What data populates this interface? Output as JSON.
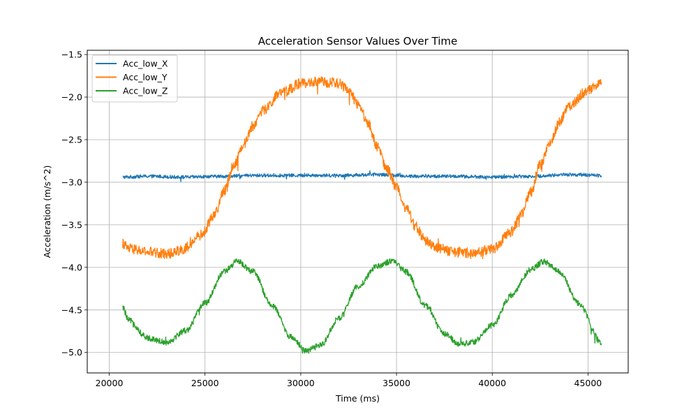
{
  "chart_data": {
    "type": "line",
    "title": "Acceleration Sensor Values Over Time",
    "xlabel": "Time (ms)",
    "ylabel": "Acceleration (m/s^2)",
    "xlim": [
      18850,
      47100
    ],
    "ylim": [
      -5.24,
      -1.45
    ],
    "xticks": [
      20000,
      25000,
      30000,
      35000,
      40000,
      45000
    ],
    "xtick_labels": [
      "20000",
      "25000",
      "30000",
      "35000",
      "40000",
      "45000"
    ],
    "yticks": [
      -5.0,
      -4.5,
      -4.0,
      -3.5,
      -3.0,
      -2.5,
      -2.0,
      -1.5
    ],
    "ytick_labels": [
      "−5.0",
      "−4.5",
      "−4.0",
      "−3.5",
      "−3.0",
      "−2.5",
      "−2.0",
      "−1.5"
    ],
    "grid": true,
    "legend_position": "top-left",
    "series": [
      {
        "name": "Acc_low_X",
        "color": "#1f77b4",
        "x": [
          20700,
          22000,
          24000,
          26000,
          28000,
          30000,
          32000,
          34000,
          36000,
          38000,
          40000,
          42000,
          44000,
          45700
        ],
        "values": [
          -2.94,
          -2.93,
          -2.94,
          -2.93,
          -2.92,
          -2.92,
          -2.92,
          -2.91,
          -2.93,
          -2.93,
          -2.94,
          -2.93,
          -2.91,
          -2.92
        ],
        "noise": 0.02
      },
      {
        "name": "Acc_low_Y",
        "color": "#ff7f0e",
        "x": [
          20700,
          21000,
          22000,
          23000,
          24000,
          24800,
          25500,
          26000,
          26500,
          27000,
          27500,
          28000,
          29000,
          30000,
          31000,
          32000,
          32500,
          33000,
          33500,
          34000,
          34500,
          35000,
          35500,
          36000,
          36500,
          37000,
          38000,
          39000,
          40000,
          41000,
          41500,
          42000,
          42500,
          43000,
          43500,
          44000,
          45000,
          45700
        ],
        "values": [
          -3.72,
          -3.78,
          -3.82,
          -3.84,
          -3.78,
          -3.62,
          -3.38,
          -3.1,
          -2.8,
          -2.56,
          -2.34,
          -2.16,
          -1.95,
          -1.84,
          -1.82,
          -1.84,
          -1.93,
          -2.08,
          -2.3,
          -2.58,
          -2.85,
          -3.05,
          -3.3,
          -3.52,
          -3.68,
          -3.76,
          -3.82,
          -3.84,
          -3.78,
          -3.58,
          -3.38,
          -3.12,
          -2.8,
          -2.55,
          -2.3,
          -2.1,
          -1.92,
          -1.82
        ],
        "noise": 0.06
      },
      {
        "name": "Acc_low_Z",
        "color": "#2ca02c",
        "x": [
          20700,
          21000,
          22000,
          23000,
          24000,
          25000,
          26000,
          26700,
          27500,
          28500,
          29500,
          30300,
          31000,
          32000,
          33000,
          34000,
          34800,
          35500,
          36500,
          37500,
          38300,
          39000,
          40000,
          41000,
          42000,
          42700,
          43500,
          44500,
          45700
        ],
        "values": [
          -4.47,
          -4.62,
          -4.83,
          -4.88,
          -4.74,
          -4.42,
          -4.05,
          -3.93,
          -4.05,
          -4.45,
          -4.82,
          -4.98,
          -4.92,
          -4.6,
          -4.22,
          -3.98,
          -3.93,
          -4.05,
          -4.45,
          -4.78,
          -4.9,
          -4.88,
          -4.68,
          -4.33,
          -4.03,
          -3.93,
          -4.05,
          -4.42,
          -4.88
        ],
        "noise": 0.035
      }
    ]
  }
}
